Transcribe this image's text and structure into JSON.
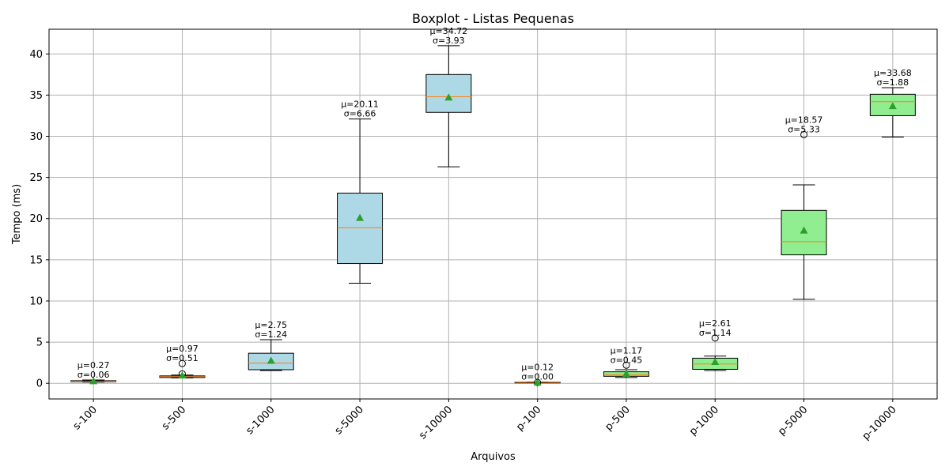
{
  "chart_data": {
    "type": "boxplot",
    "title": "Boxplot - Listas Pequenas",
    "xlabel": "Arquivos",
    "ylabel": "Tempo (ms)",
    "ylim": [
      -1.9,
      43
    ],
    "yticks": [
      0,
      5,
      10,
      15,
      20,
      25,
      30,
      35,
      40
    ],
    "grid": true,
    "categories": [
      "s-100",
      "s-500",
      "s-1000",
      "s-5000",
      "s-10000",
      "p-100",
      "p-500",
      "p-1000",
      "p-5000",
      "p-10000"
    ],
    "boxes": [
      {
        "label": "s-100",
        "q1": 0.2,
        "median": 0.26,
        "q3": 0.32,
        "whisker_low": 0.15,
        "whisker_high": 0.4,
        "mean": 0.27,
        "std": 0.06,
        "outliers": [],
        "annotation": [
          "μ=0.27",
          "σ=0.06"
        ]
      },
      {
        "label": "s-500",
        "q1": 0.7,
        "median": 0.8,
        "q3": 0.9,
        "whisker_low": 0.65,
        "whisker_high": 1.0,
        "mean": 0.97,
        "std": 0.51,
        "outliers": [
          1.15,
          2.4
        ],
        "annotation": [
          "μ=0.97",
          "σ=0.51"
        ]
      },
      {
        "label": "s-1000",
        "q1": 1.65,
        "median": 2.45,
        "q3": 3.65,
        "whisker_low": 1.55,
        "whisker_high": 5.3,
        "mean": 2.75,
        "std": 1.24,
        "outliers": [],
        "annotation": [
          "μ=2.75",
          "σ=1.24"
        ]
      },
      {
        "label": "s-5000",
        "q1": 14.55,
        "median": 18.9,
        "q3": 23.1,
        "whisker_low": 12.15,
        "whisker_high": 32.1,
        "mean": 20.11,
        "std": 6.66,
        "outliers": [],
        "annotation": [
          "μ=20.11",
          "σ=6.66"
        ]
      },
      {
        "label": "s-10000",
        "q1": 32.9,
        "median": 34.8,
        "q3": 37.5,
        "whisker_low": 26.3,
        "whisker_high": 41.0,
        "mean": 34.72,
        "std": 3.93,
        "outliers": [],
        "annotation": [
          "μ=34.72",
          "σ=3.93"
        ]
      },
      {
        "label": "p-100",
        "q1": 0.1,
        "median": 0.12,
        "q3": 0.14,
        "whisker_low": 0.08,
        "whisker_high": 0.15,
        "mean": 0.12,
        "std": 0.0,
        "outliers": [
          0.1
        ],
        "annotation": [
          "μ=0.12",
          "σ=0.00"
        ]
      },
      {
        "label": "p-500",
        "q1": 0.85,
        "median": 1.05,
        "q3": 1.4,
        "whisker_low": 0.7,
        "whisker_high": 1.65,
        "mean": 1.17,
        "std": 0.45,
        "outliers": [
          2.2
        ],
        "annotation": [
          "μ=1.17",
          "σ=0.45"
        ]
      },
      {
        "label": "p-1000",
        "q1": 1.7,
        "median": 2.35,
        "q3": 3.05,
        "whisker_low": 1.55,
        "whisker_high": 3.3,
        "mean": 2.61,
        "std": 1.14,
        "outliers": [
          5.5
        ],
        "annotation": [
          "μ=2.61",
          "σ=1.14"
        ]
      },
      {
        "label": "p-5000",
        "q1": 15.6,
        "median": 17.2,
        "q3": 21.0,
        "whisker_low": 10.2,
        "whisker_high": 24.1,
        "mean": 18.57,
        "std": 5.33,
        "outliers": [
          30.2
        ],
        "annotation": [
          "μ=18.57",
          "σ=5.33"
        ]
      },
      {
        "label": "p-10000",
        "q1": 32.5,
        "median": 34.2,
        "q3": 35.1,
        "whisker_low": 29.9,
        "whisker_high": 35.9,
        "mean": 33.68,
        "std": 1.88,
        "outliers": [],
        "annotation": [
          "μ=33.68",
          "σ=1.88"
        ]
      }
    ],
    "colors": {
      "s_box_fill": "#add8e6",
      "p_box_fill": "#90ee90",
      "median_line": "#ff7f0e",
      "mean_marker": "#2ca02c",
      "grid": "#b0b0b0",
      "axes": "#000000"
    }
  }
}
